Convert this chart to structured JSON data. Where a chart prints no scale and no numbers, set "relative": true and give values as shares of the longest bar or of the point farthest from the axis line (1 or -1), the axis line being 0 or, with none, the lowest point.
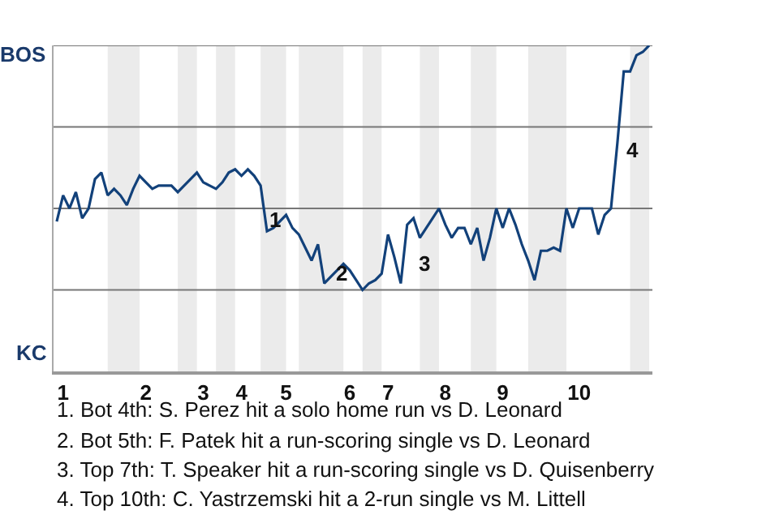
{
  "chart_data": {
    "type": "line",
    "relative": true,
    "categories": [
      null,
      "1",
      null,
      null,
      null,
      null,
      null,
      null,
      null,
      null,
      null,
      null,
      null,
      null,
      "2",
      null,
      null,
      null,
      null,
      null,
      null,
      null,
      null,
      "3",
      null,
      null,
      null,
      null,
      null,
      "4",
      null,
      null,
      null,
      null,
      null,
      null,
      "5",
      null,
      null,
      null,
      null,
      null,
      null,
      null,
      null,
      null,
      "6",
      null,
      null,
      null,
      null,
      null,
      "7",
      null,
      null,
      null,
      null,
      null,
      null,
      null,
      null,
      "8",
      null,
      null,
      null,
      null,
      null,
      null,
      null,
      null,
      "9",
      null,
      null,
      null,
      null,
      null,
      null,
      null,
      null,
      null,
      null,
      null,
      "10",
      null,
      null,
      null,
      null,
      null,
      null,
      null,
      null,
      null,
      null,
      null
    ],
    "series": [
      {
        "color": "#12417a",
        "values": [
          0.46,
          0.54,
          0.5,
          0.55,
          0.47,
          0.5,
          0.59,
          0.61,
          0.54,
          0.56,
          0.54,
          0.51,
          0.56,
          0.6,
          0.58,
          0.56,
          0.57,
          0.57,
          0.57,
          0.55,
          0.57,
          0.59,
          0.61,
          0.58,
          0.57,
          0.56,
          0.58,
          0.61,
          0.62,
          0.6,
          0.62,
          0.6,
          0.57,
          0.43,
          0.44,
          0.46,
          0.48,
          0.44,
          0.42,
          0.38,
          0.34,
          0.39,
          0.27,
          0.29,
          0.31,
          0.33,
          0.31,
          0.28,
          0.25,
          0.27,
          0.28,
          0.3,
          0.42,
          0.35,
          0.27,
          0.45,
          0.47,
          0.41,
          0.44,
          0.47,
          0.5,
          0.45,
          0.41,
          0.44,
          0.44,
          0.39,
          0.44,
          0.34,
          0.41,
          0.5,
          0.44,
          0.5,
          0.45,
          0.39,
          0.34,
          0.28,
          0.37,
          0.37,
          0.38,
          0.37,
          0.5,
          0.44,
          0.5,
          0.5,
          0.5,
          0.42,
          0.48,
          0.5,
          0.7,
          0.92,
          0.92,
          0.97,
          0.98,
          1
        ],
        "line_style": "solid"
      }
    ],
    "ref_lines": [
      {
        "axis": "y",
        "value": 0.25,
        "color": "#777777"
      },
      {
        "axis": "y",
        "value": 0.5,
        "color": "#777777"
      },
      {
        "axis": "y",
        "value": 0.75,
        "color": "#777777"
      },
      {
        "axis": "y",
        "value": 1,
        "color": "#777777"
      }
    ],
    "annotations": [
      "BOS",
      "KC",
      "1",
      "2",
      "3",
      "4",
      "1. Bot 4th: S. Perez hit a solo home run vs D. Leonard",
      "2. Bot 5th: F. Patek hit a run-scoring single vs D. Leonard",
      "3. Top 7th: T. Speaker hit a run-scoring single vs D. Quisenberry",
      "4. Top 10th: C. Yastrzemski hit a 2-run single vs M. Littell"
    ]
  }
}
